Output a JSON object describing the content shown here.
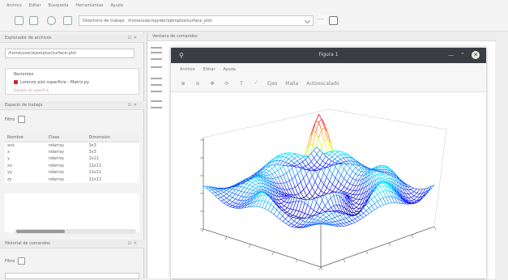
{
  "menu": [
    "Archivo",
    "Editar",
    "Búsqueda",
    "Herramientas",
    "Ayuda"
  ],
  "toolbar": {
    "path_label": "Directorio de trabajo",
    "path_value": "/home/user/spyder/ejemplos/surface_plot",
    "icons": [
      "new-file-icon",
      "open-file-icon",
      "settings-icon",
      "python-path-icon",
      "folder-icon"
    ]
  },
  "file_explorer": {
    "title": "Explorador de archivos",
    "combo_value": "/home/user/ejemplos/surface-plot",
    "recent_label": "Recientes",
    "recent_item": "Lorenzo plot superficie - Matriz.py",
    "recent_item2": "Ejemplo de superficie"
  },
  "workspace": {
    "title": "Espacio de trabajo",
    "filter_label": "Filtro",
    "columns": [
      "Nombre",
      "Clase",
      "Dimensión"
    ],
    "rows": [
      [
        "ans",
        "ndarray",
        "3x3"
      ],
      [
        "x",
        "ndarray",
        "3x3"
      ],
      [
        "y",
        "ndarray",
        "1x11"
      ],
      [
        "xx",
        "ndarray",
        "11x11"
      ],
      [
        "yy",
        "ndarray",
        "11x11"
      ],
      [
        "zz",
        "ndarray",
        "11x11"
      ]
    ]
  },
  "history": {
    "title": "Historial de comandos",
    "filter_label": "Filtro"
  },
  "console": {
    "title": "Ventana de comandos"
  },
  "figure": {
    "title": "Figura 1",
    "menu": [
      "Archivo",
      "Editar",
      "Ayuda"
    ],
    "tools": [
      "zoom-in-icon",
      "zoom-out-icon",
      "pan-icon",
      "rotate-icon",
      "text-icon",
      "line-icon"
    ],
    "tool_labels": [
      "Ejes",
      "Malla",
      "Autoescalado"
    ],
    "colormap": "jet"
  }
}
